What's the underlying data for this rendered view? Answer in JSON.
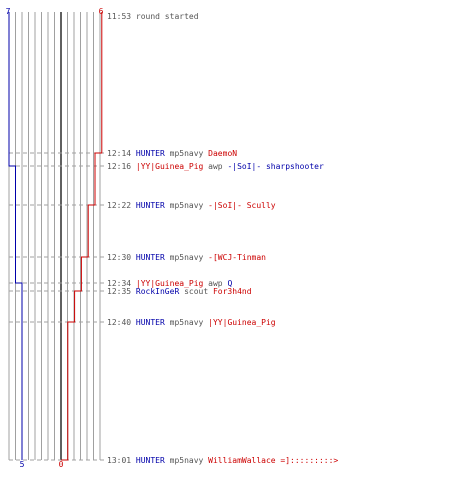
{
  "colors": {
    "blue": "#0000aa",
    "red": "#cc0000",
    "gray_line": "#a0a0a0",
    "center_line": "#606060",
    "text": "#555555"
  },
  "score": {
    "blue_start": "7",
    "red_start": "6",
    "blue_end": "5",
    "red_end": "0"
  },
  "events": [
    {
      "time": "11:53",
      "parts": [
        {
          "t": "round started",
          "c": "gray"
        }
      ]
    },
    {
      "time": "12:14",
      "parts": [
        {
          "t": "HUNTER",
          "c": "blue"
        },
        {
          "t": " mp5navy ",
          "c": "gray"
        },
        {
          "t": "DaemoN",
          "c": "red"
        }
      ]
    },
    {
      "time": "12:16",
      "parts": [
        {
          "t": "|YY|Guinea_Pig",
          "c": "red"
        },
        {
          "t": " awp ",
          "c": "gray"
        },
        {
          "t": "-|SoI|- sharpshooter",
          "c": "blue"
        }
      ]
    },
    {
      "time": "12:22",
      "parts": [
        {
          "t": "HUNTER",
          "c": "blue"
        },
        {
          "t": " mp5navy ",
          "c": "gray"
        },
        {
          "t": "-|SoI|- Scully",
          "c": "red"
        }
      ]
    },
    {
      "time": "12:30",
      "parts": [
        {
          "t": "HUNTER",
          "c": "blue"
        },
        {
          "t": " mp5navy ",
          "c": "gray"
        },
        {
          "t": "-[WCJ-Tinman",
          "c": "red"
        }
      ]
    },
    {
      "time": "12:34",
      "parts": [
        {
          "t": "|YY|Guinea_Pig",
          "c": "red"
        },
        {
          "t": " awp ",
          "c": "gray"
        },
        {
          "t": "Q",
          "c": "blue"
        }
      ]
    },
    {
      "time": "12:35",
      "parts": [
        {
          "t": "RockInGeR",
          "c": "blue"
        },
        {
          "t": " scout ",
          "c": "gray"
        },
        {
          "t": "For3h4nd",
          "c": "red"
        }
      ]
    },
    {
      "time": "12:40",
      "parts": [
        {
          "t": "HUNTER",
          "c": "blue"
        },
        {
          "t": " mp5navy ",
          "c": "gray"
        },
        {
          "t": "|YY|Guinea_Pig",
          "c": "red"
        }
      ]
    },
    {
      "time": "13:01",
      "parts": [
        {
          "t": "HUNTER",
          "c": "blue"
        },
        {
          "t": " mp5navy ",
          "c": "gray"
        },
        {
          "t": "WilliamWallace =]:::::::::>",
          "c": "red"
        }
      ]
    }
  ],
  "counts": {
    "blue": [
      7,
      7,
      6,
      6,
      6,
      5,
      5,
      5,
      5
    ],
    "red": [
      6,
      5,
      5,
      4,
      3,
      3,
      2,
      1,
      0
    ]
  }
}
